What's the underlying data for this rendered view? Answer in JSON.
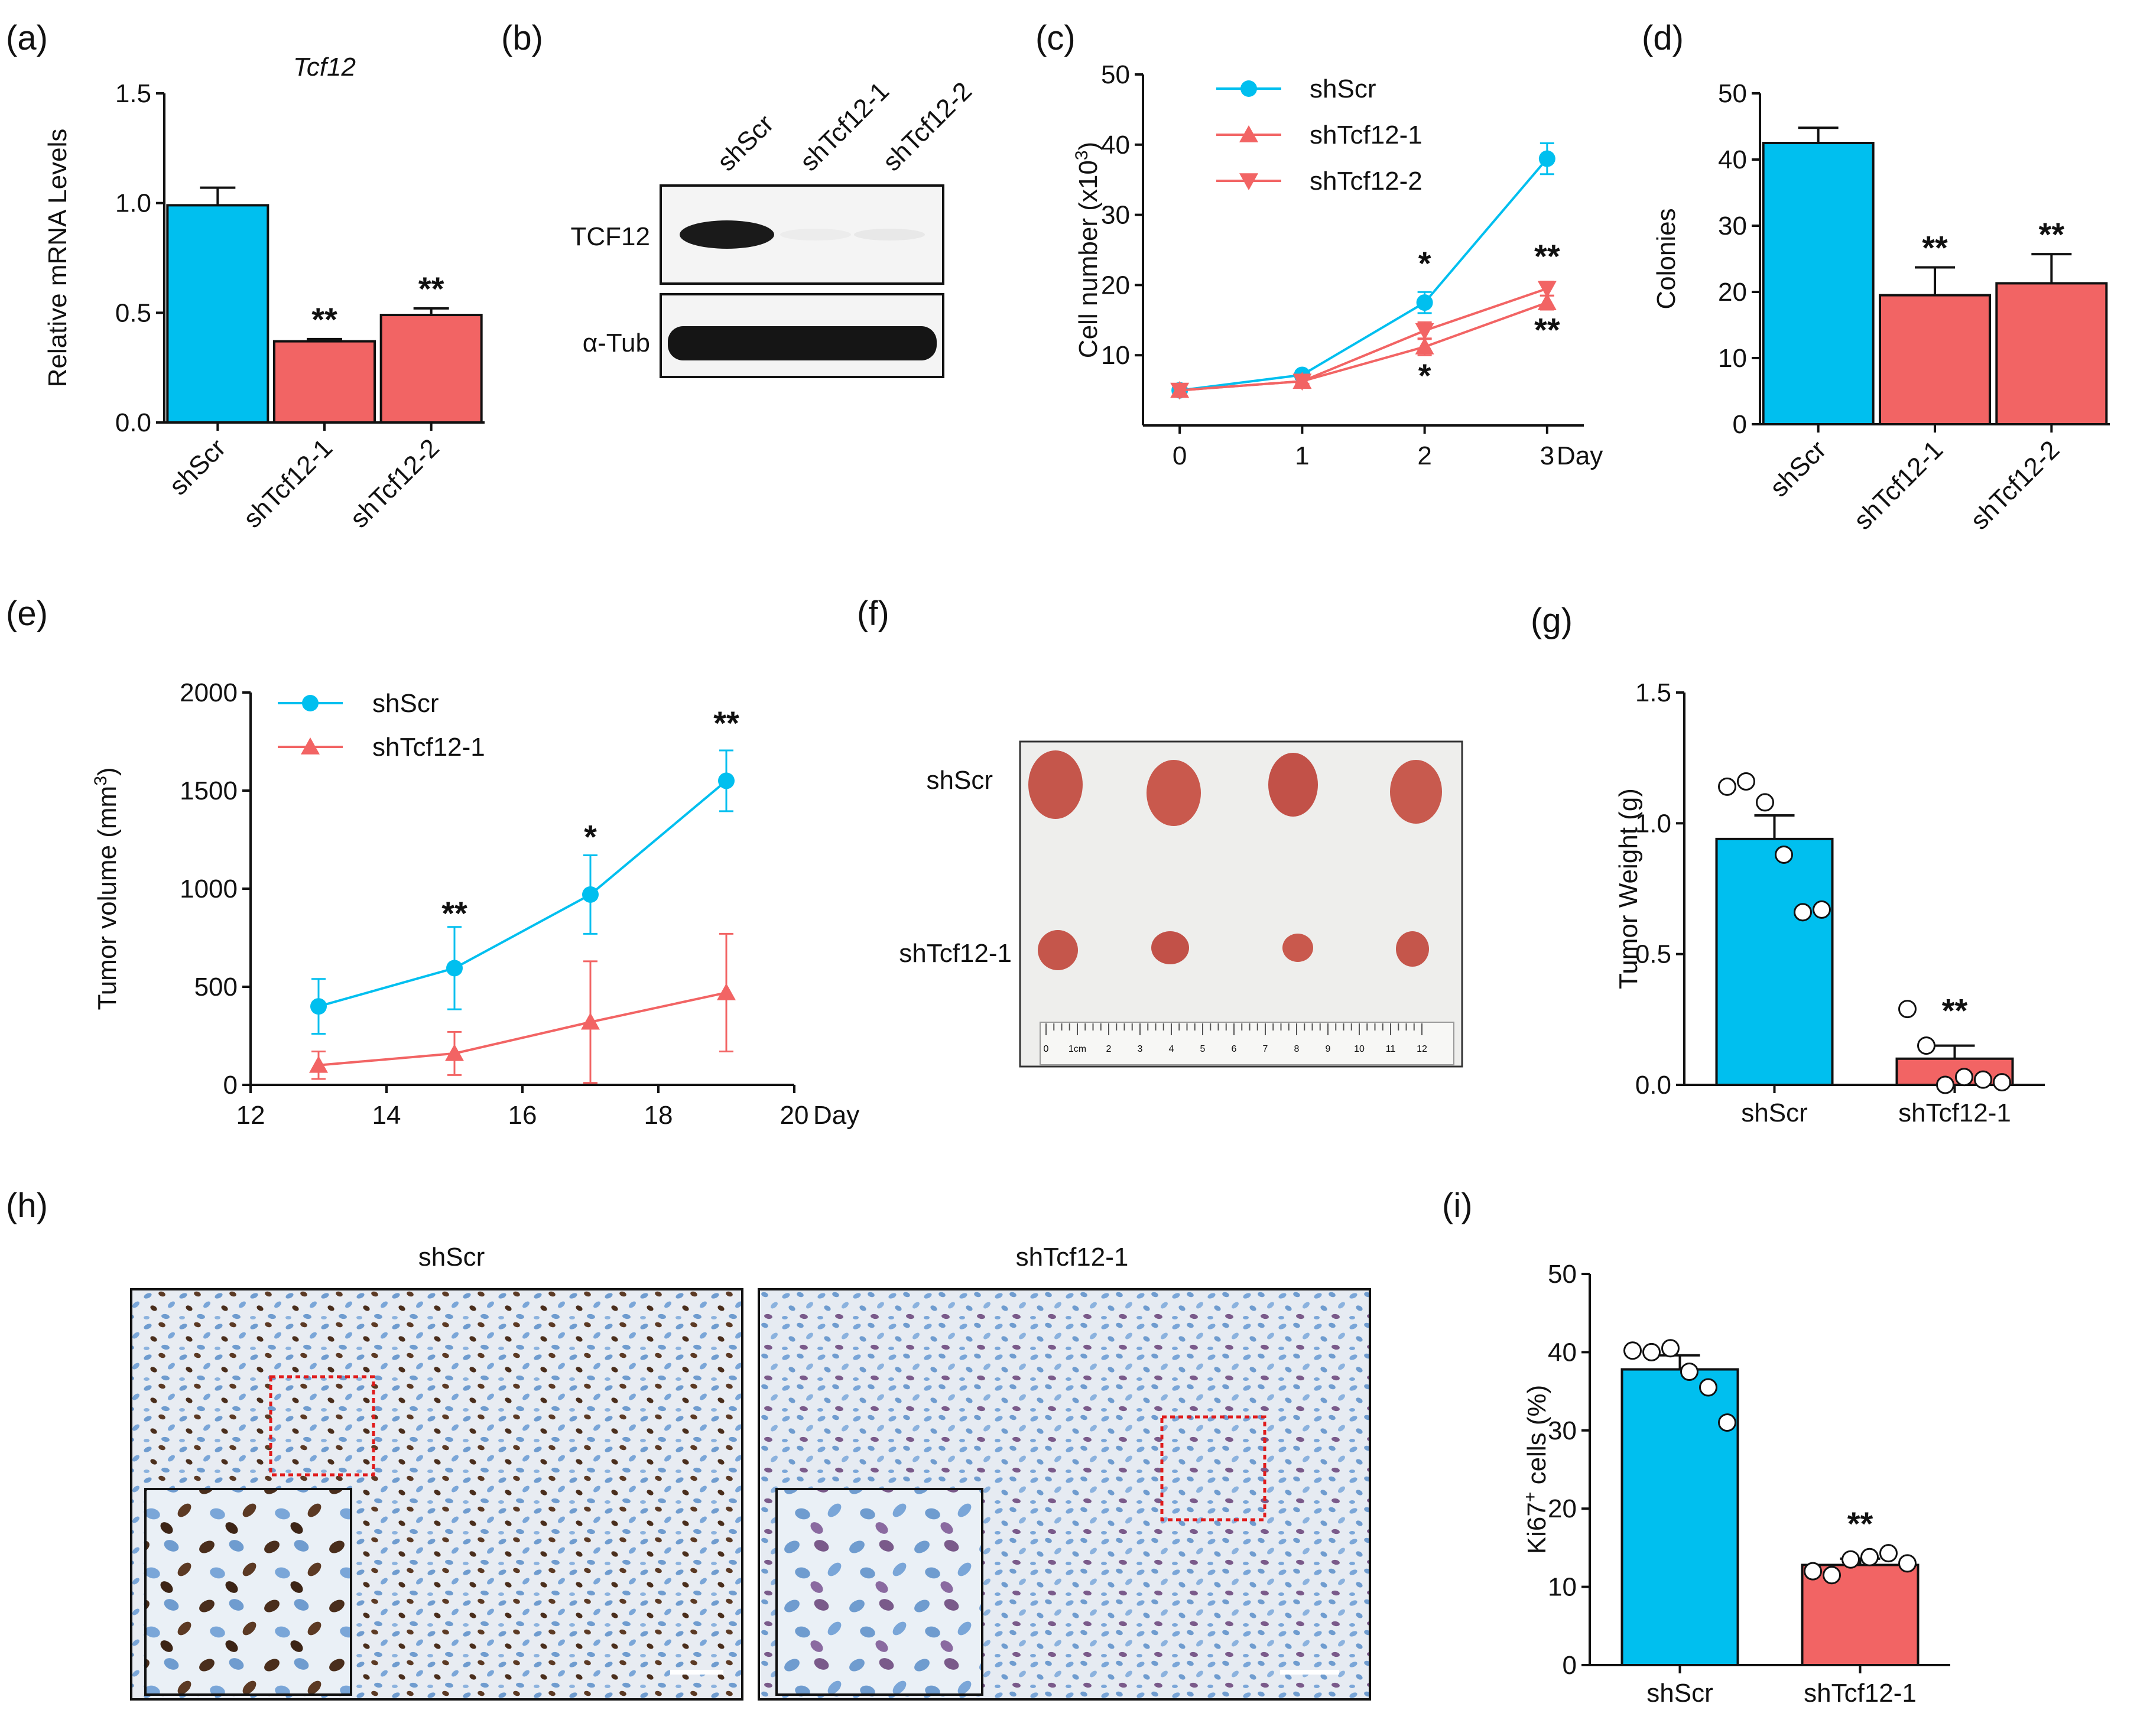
{
  "colors": {
    "blue": "#00bfef",
    "red": "#f26464",
    "axis": "#111111",
    "scale_bar": "#ffffff",
    "roi": "#e01b1b",
    "nuclei_blue": "#6f9ccf",
    "nuclei_brown": "#5c3a24",
    "tissue_bg": "#e4e8ee",
    "tumor": "#c5564b"
  },
  "panels": {
    "a": {
      "label": "(a)"
    },
    "b": {
      "label": "(b)"
    },
    "c": {
      "label": "(c)"
    },
    "d": {
      "label": "(d)"
    },
    "e": {
      "label": "(e)"
    },
    "f": {
      "label": "(f)"
    },
    "g": {
      "label": "(g)"
    },
    "h": {
      "label": "(h)"
    },
    "i": {
      "label": "(i)"
    }
  },
  "blot": {
    "lanes": [
      "shScr",
      "shTcf12-1",
      "shTcf12-2"
    ],
    "proteins": [
      "TCF12",
      "α-Tub"
    ]
  },
  "photo": {
    "row_labels": [
      "shScr",
      "shTcf12-1"
    ],
    "ruler_labels": [
      "0",
      "1cm",
      "2",
      "3",
      "4",
      "5",
      "6",
      "7",
      "8",
      "9",
      "10",
      "11",
      "12"
    ]
  },
  "ihc": {
    "titles": [
      "shScr",
      "shTcf12-1"
    ]
  },
  "chart_data": [
    {
      "id": "a",
      "type": "bar",
      "title": "Tcf12",
      "ylabel": "Relative mRNA Levels",
      "categories": [
        "shScr",
        "shTcf12-1",
        "shTcf12-2"
      ],
      "values": [
        0.99,
        0.37,
        0.49
      ],
      "errors": [
        0.08,
        0.01,
        0.03
      ],
      "ylim": [
        0,
        1.5
      ],
      "yticks": [
        "0.0",
        "0.5",
        "1.0",
        "1.5"
      ],
      "significance": [
        "",
        "**",
        "**"
      ]
    },
    {
      "id": "c",
      "type": "line",
      "ylabel": "Cell number (x10",
      "ylabel_sup": "3",
      "ylabel_tail": ")",
      "xlabel": "Day",
      "x": [
        0,
        1,
        2,
        3
      ],
      "xticks": [
        "0",
        "1",
        "2",
        "3"
      ],
      "xlim": [
        -0.3,
        3.3
      ],
      "ylim": [
        0,
        50
      ],
      "yticks": [
        "10",
        "20",
        "30",
        "40",
        "50"
      ],
      "series": [
        {
          "name": "shScr",
          "marker": "circle",
          "values": [
            5,
            7.2,
            17.5,
            38
          ],
          "errors": [
            0.5,
            0.6,
            1.5,
            2.2
          ]
        },
        {
          "name": "shTcf12-1",
          "marker": "triangle-up",
          "values": [
            5,
            6.3,
            11.2,
            17.5
          ],
          "errors": [
            0.4,
            0.4,
            1.2,
            1.0
          ]
        },
        {
          "name": "shTcf12-2",
          "marker": "triangle-down",
          "values": [
            5,
            6.3,
            13.5,
            19.5
          ],
          "errors": [
            0.4,
            0.4,
            1.2,
            1.0
          ]
        }
      ],
      "annotations": [
        {
          "x": 2,
          "y": 23,
          "text": "*"
        },
        {
          "x": 2,
          "y": 7,
          "text": "*"
        },
        {
          "x": 3,
          "y": 24,
          "text": "**"
        },
        {
          "x": 3,
          "y": 13.5,
          "text": "**"
        }
      ],
      "legend_position": "top-left"
    },
    {
      "id": "d",
      "type": "bar",
      "ylabel": "Colonies",
      "categories": [
        "shScr",
        "shTcf12-1",
        "shTcf12-2"
      ],
      "values": [
        42.5,
        19.5,
        21.3
      ],
      "errors": [
        2.3,
        4.2,
        4.4
      ],
      "ylim": [
        0,
        50
      ],
      "yticks": [
        "0",
        "10",
        "20",
        "30",
        "40",
        "50"
      ],
      "significance": [
        "",
        "**",
        "**"
      ]
    },
    {
      "id": "e",
      "type": "line",
      "ylabel": "Tumor volume (mm",
      "ylabel_sup": "3",
      "ylabel_tail": ")",
      "xlabel": "Day",
      "x": [
        13,
        15,
        17,
        19
      ],
      "xticks": [
        "12",
        "14",
        "16",
        "18",
        "20"
      ],
      "xtick_values": [
        12,
        14,
        16,
        18,
        20
      ],
      "xlim": [
        12,
        20
      ],
      "ylim": [
        0,
        2000
      ],
      "yticks": [
        "0",
        "500",
        "1000",
        "1500",
        "2000"
      ],
      "series": [
        {
          "name": "shScr",
          "marker": "circle",
          "values": [
            400,
            595,
            970,
            1550
          ],
          "errors": [
            140,
            210,
            200,
            155
          ]
        },
        {
          "name": "shTcf12-1",
          "marker": "triangle-up",
          "values": [
            100,
            160,
            320,
            470
          ],
          "errors": [
            70,
            110,
            310,
            300
          ]
        }
      ],
      "annotations": [
        {
          "x": 15,
          "y": 870,
          "text": "**"
        },
        {
          "x": 17,
          "y": 1260,
          "text": "*"
        },
        {
          "x": 19,
          "y": 1840,
          "text": "**"
        }
      ],
      "legend_position": "top-left"
    },
    {
      "id": "g",
      "type": "bar",
      "ylabel": "Tumor Weight (g)",
      "categories": [
        "shScr",
        "shTcf12-1"
      ],
      "values": [
        0.94,
        0.1
      ],
      "errors": [
        0.09,
        0.05
      ],
      "points": [
        [
          1.14,
          1.16,
          1.08,
          0.88,
          0.66,
          0.67
        ],
        [
          0.29,
          0.15,
          0.0,
          0.03,
          0.02,
          0.01
        ]
      ],
      "ylim": [
        0,
        1.5
      ],
      "yticks": [
        "0.0",
        "0.5",
        "1.0",
        "1.5"
      ],
      "significance": [
        "",
        "**"
      ]
    },
    {
      "id": "i",
      "type": "bar",
      "ylabel": "Ki67",
      "ylabel_sup": "+",
      "ylabel_tail": " cells (%)",
      "categories": [
        "shScr",
        "shTcf12-1"
      ],
      "values": [
        37.8,
        12.8
      ],
      "errors": [
        1.8,
        0.8
      ],
      "points": [
        [
          40.2,
          40.0,
          40.5,
          37.5,
          35.5,
          31.0
        ],
        [
          12.0,
          11.5,
          13.5,
          13.8,
          14.3,
          13.0
        ]
      ],
      "ylim": [
        0,
        50
      ],
      "yticks": [
        "0",
        "10",
        "20",
        "30",
        "40",
        "50"
      ],
      "significance": [
        "",
        "**"
      ]
    }
  ]
}
